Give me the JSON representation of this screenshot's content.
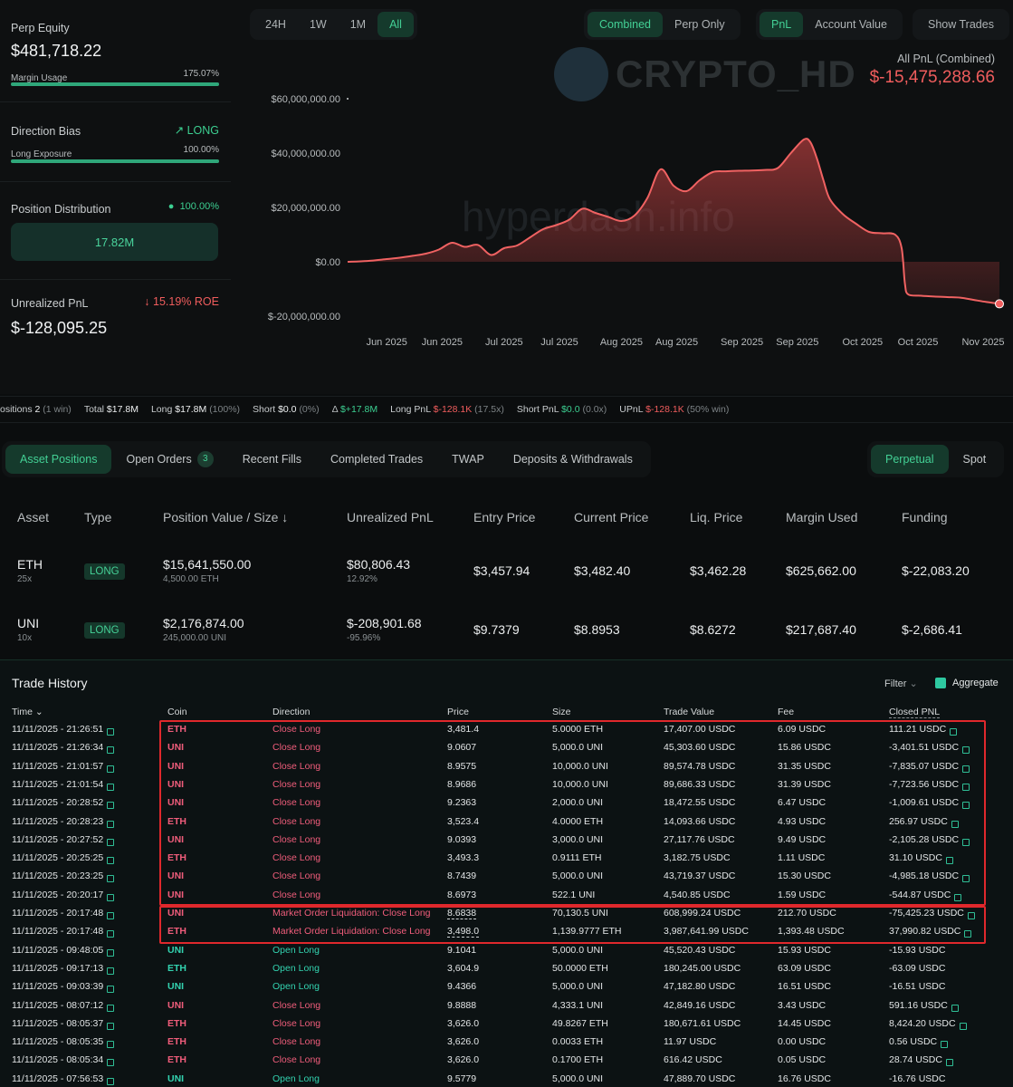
{
  "left_panel": {
    "perp_equity": {
      "label": "Perp Equity",
      "value": "$481,718.22",
      "sub_label": "Margin Usage",
      "sub_value": "175.07%",
      "bar_fraction": 1.0
    },
    "direction_bias": {
      "label": "Direction Bias",
      "value": "LONG",
      "sub_label": "Long Exposure",
      "sub_value": "100.00%",
      "bar_fraction": 1.0
    },
    "position_distribution": {
      "label": "Position Distribution",
      "value": "100.00%",
      "box_value": "17.82M"
    },
    "unrealized_pnl": {
      "label": "Unrealized PnL",
      "roe": "15.19% ROE",
      "value": "$-128,095.25"
    }
  },
  "toolbar": {
    "ranges": [
      "24H",
      "1W",
      "1M",
      "All"
    ],
    "range_active": "All",
    "modes": [
      "Combined",
      "Perp Only"
    ],
    "mode_active": "Combined",
    "metrics": [
      "PnL",
      "Account Value"
    ],
    "metric_active": "PnL",
    "show_trades": "Show Trades"
  },
  "watermark": {
    "text": "CRYPTO_HD",
    "site": "hyperdash.info"
  },
  "pnl_summary": {
    "label": "All PnL (Combined)",
    "value": "$-15,475,288.66"
  },
  "chart_data": {
    "type": "area",
    "title": "",
    "xlabel": "",
    "ylabel": "",
    "ylim": [
      -20000000,
      60000000
    ],
    "y_ticks": [
      "$60,000,000.00",
      "$40,000,000.00",
      "$20,000,000.00",
      "$0.00",
      "$-20,000,000.00"
    ],
    "y_tick_values": [
      60000000,
      40000000,
      20000000,
      0,
      -20000000
    ],
    "x_ticks": [
      "Jun 2025",
      "Jun 2025",
      "Jul 2025",
      "Jul 2025",
      "Aug 2025",
      "Aug 2025",
      "Sep 2025",
      "Sep 2025",
      "Oct 2025",
      "Oct 2025",
      "Nov 2025"
    ],
    "x_range": [
      0,
      100
    ],
    "x_tick_positions": [
      6,
      14.5,
      24,
      32.5,
      42,
      50.5,
      60.5,
      69,
      79,
      87.5,
      97.5
    ],
    "x": [
      0,
      3,
      6,
      8,
      10,
      12,
      14,
      16,
      18,
      20,
      22,
      24,
      26,
      28,
      30,
      32,
      34,
      36,
      38,
      40,
      42,
      44,
      46,
      48,
      50,
      52,
      54,
      56,
      58,
      60,
      62,
      64,
      66,
      68,
      70,
      71,
      72,
      73,
      74,
      76,
      78,
      80,
      82,
      84,
      85,
      85.5,
      86,
      88,
      90,
      92,
      94,
      96,
      98,
      100
    ],
    "y": [
      0,
      300000,
      1000000,
      1500000,
      2200000,
      3000000,
      4500000,
      7000000,
      5500000,
      6200000,
      2500000,
      5000000,
      6000000,
      9000000,
      12000000,
      13500000,
      15500000,
      19500000,
      18000000,
      16500000,
      15000000,
      17000000,
      23500000,
      34000000,
      28000000,
      26000000,
      30000000,
      33000000,
      33300000,
      33500000,
      33600000,
      33800000,
      34500000,
      40000000,
      45000000,
      44000000,
      38000000,
      30000000,
      23000000,
      17500000,
      14000000,
      11000000,
      10500000,
      10000000,
      5000000,
      -8000000,
      -12000000,
      -12500000,
      -12800000,
      -13000000,
      -13200000,
      -14000000,
      -14800000,
      -15475288
    ]
  },
  "stats": [
    {
      "label": "ositions",
      "value": "2",
      "extra": "(1 win)"
    },
    {
      "label": "Total",
      "value": "$17.8M",
      "extra": ""
    },
    {
      "label": "Long",
      "value": "$17.8M",
      "extra": "(100%)"
    },
    {
      "label": "Short",
      "value": "$0.0",
      "extra": "(0%)"
    },
    {
      "label": "Δ",
      "value": "$+17.8M",
      "extra": ""
    },
    {
      "label": "Long PnL",
      "value": "$-128.1K",
      "extra": "(17.5x)"
    },
    {
      "label": "Short PnL",
      "value": "$0.0",
      "extra": "(0.0x)"
    },
    {
      "label": "UPnL",
      "value": "$-128.1K",
      "extra": "(50% win)"
    }
  ],
  "tabs": [
    {
      "label": "Asset Positions",
      "badge": ""
    },
    {
      "label": "Open Orders",
      "badge": "3"
    },
    {
      "label": "Recent Fills",
      "badge": ""
    },
    {
      "label": "Completed Trades",
      "badge": ""
    },
    {
      "label": "TWAP",
      "badge": ""
    },
    {
      "label": "Deposits & Withdrawals",
      "badge": ""
    }
  ],
  "market_tabs": [
    "Perpetual",
    "Spot"
  ],
  "positions": {
    "headers": [
      "Asset",
      "Type",
      "Position Value / Size",
      "Unrealized PnL",
      "Entry Price",
      "Current Price",
      "Liq. Price",
      "Margin Used",
      "Funding"
    ],
    "rows": [
      {
        "asset": "ETH",
        "leverage": "25x",
        "type": "LONG",
        "value": "$15,641,550.00",
        "size": "4,500.00 ETH",
        "upnl": "$80,806.43",
        "upnl_pct": "12.92%",
        "entry": "$3,457.94",
        "current": "$3,482.40",
        "liq": "$3,462.28",
        "margin": "$625,662.00",
        "funding": "$-22,083.20"
      },
      {
        "asset": "UNI",
        "leverage": "10x",
        "type": "LONG",
        "value": "$2,176,874.00",
        "size": "245,000.00 UNI",
        "upnl": "$-208,901.68",
        "upnl_pct": "-95.96%",
        "entry": "$9.7379",
        "current": "$8.8953",
        "liq": "$8.6272",
        "margin": "$217,687.40",
        "funding": "$-2,686.41"
      }
    ]
  },
  "history": {
    "title": "Trade History",
    "filter": "Filter",
    "aggregate": "Aggregate",
    "headers": [
      "Time",
      "Coin",
      "Direction",
      "Price",
      "Size",
      "Trade Value",
      "Fee",
      "Closed PNL"
    ],
    "rows": [
      {
        "time": "11/11/2025 - 21:26:51",
        "coin": "ETH",
        "dir": "Close Long",
        "price": "3,481.4",
        "size": "5.0000 ETH",
        "value": "17,407.00 USDC",
        "fee": "6.09 USDC",
        "pnl": "111.21 USDC",
        "open": false
      },
      {
        "time": "11/11/2025 - 21:26:34",
        "coin": "UNI",
        "dir": "Close Long",
        "price": "9.0607",
        "size": "5,000.0 UNI",
        "value": "45,303.60 USDC",
        "fee": "15.86 USDC",
        "pnl": "-3,401.51 USDC",
        "open": false
      },
      {
        "time": "11/11/2025 - 21:01:57",
        "coin": "UNI",
        "dir": "Close Long",
        "price": "8.9575",
        "size": "10,000.0 UNI",
        "value": "89,574.78 USDC",
        "fee": "31.35 USDC",
        "pnl": "-7,835.07 USDC",
        "open": false
      },
      {
        "time": "11/11/2025 - 21:01:54",
        "coin": "UNI",
        "dir": "Close Long",
        "price": "8.9686",
        "size": "10,000.0 UNI",
        "value": "89,686.33 USDC",
        "fee": "31.39 USDC",
        "pnl": "-7,723.56 USDC",
        "open": false
      },
      {
        "time": "11/11/2025 - 20:28:52",
        "coin": "UNI",
        "dir": "Close Long",
        "price": "9.2363",
        "size": "2,000.0 UNI",
        "value": "18,472.55 USDC",
        "fee": "6.47 USDC",
        "pnl": "-1,009.61 USDC",
        "open": false
      },
      {
        "time": "11/11/2025 - 20:28:23",
        "coin": "ETH",
        "dir": "Close Long",
        "price": "3,523.4",
        "size": "4.0000 ETH",
        "value": "14,093.66 USDC",
        "fee": "4.93 USDC",
        "pnl": "256.97 USDC",
        "open": false
      },
      {
        "time": "11/11/2025 - 20:27:52",
        "coin": "UNI",
        "dir": "Close Long",
        "price": "9.0393",
        "size": "3,000.0 UNI",
        "value": "27,117.76 USDC",
        "fee": "9.49 USDC",
        "pnl": "-2,105.28 USDC",
        "open": false
      },
      {
        "time": "11/11/2025 - 20:25:25",
        "coin": "ETH",
        "dir": "Close Long",
        "price": "3,493.3",
        "size": "0.9111 ETH",
        "value": "3,182.75 USDC",
        "fee": "1.11 USDC",
        "pnl": "31.10 USDC",
        "open": false
      },
      {
        "time": "11/11/2025 - 20:23:25",
        "coin": "UNI",
        "dir": "Close Long",
        "price": "8.7439",
        "size": "5,000.0 UNI",
        "value": "43,719.37 USDC",
        "fee": "15.30 USDC",
        "pnl": "-4,985.18 USDC",
        "open": false
      },
      {
        "time": "11/11/2025 - 20:20:17",
        "coin": "UNI",
        "dir": "Close Long",
        "price": "8.6973",
        "size": "522.1 UNI",
        "value": "4,540.85 USDC",
        "fee": "1.59 USDC",
        "pnl": "-544.87 USDC",
        "open": false
      },
      {
        "time": "11/11/2025 - 20:17:48",
        "coin": "UNI",
        "dir": "Market Order Liquidation: Close Long",
        "price": "8.6838",
        "size": "70,130.5 UNI",
        "value": "608,999.24 USDC",
        "fee": "212.70 USDC",
        "pnl": "-75,425.23 USDC",
        "open": false
      },
      {
        "time": "11/11/2025 - 20:17:48",
        "coin": "ETH",
        "dir": "Market Order Liquidation: Close Long",
        "price": "3,498.0",
        "size": "1,139.9777 ETH",
        "value": "3,987,641.99 USDC",
        "fee": "1,393.48 USDC",
        "pnl": "37,990.82 USDC",
        "open": false
      },
      {
        "time": "11/11/2025 - 09:48:05",
        "coin": "UNI",
        "dir": "Open Long",
        "price": "9.1041",
        "size": "5,000.0 UNI",
        "value": "45,520.43 USDC",
        "fee": "15.93 USDC",
        "pnl": "-15.93 USDC",
        "open": true
      },
      {
        "time": "11/11/2025 - 09:17:13",
        "coin": "ETH",
        "dir": "Open Long",
        "price": "3,604.9",
        "size": "50.0000 ETH",
        "value": "180,245.00 USDC",
        "fee": "63.09 USDC",
        "pnl": "-63.09 USDC",
        "open": true
      },
      {
        "time": "11/11/2025 - 09:03:39",
        "coin": "UNI",
        "dir": "Open Long",
        "price": "9.4366",
        "size": "5,000.0 UNI",
        "value": "47,182.80 USDC",
        "fee": "16.51 USDC",
        "pnl": "-16.51 USDC",
        "open": true
      },
      {
        "time": "11/11/2025 - 08:07:12",
        "coin": "UNI",
        "dir": "Close Long",
        "price": "9.8888",
        "size": "4,333.1 UNI",
        "value": "42,849.16 USDC",
        "fee": "3.43 USDC",
        "pnl": "591.16 USDC",
        "open": false
      },
      {
        "time": "11/11/2025 - 08:05:37",
        "coin": "ETH",
        "dir": "Close Long",
        "price": "3,626.0",
        "size": "49.8267 ETH",
        "value": "180,671.61 USDC",
        "fee": "14.45 USDC",
        "pnl": "8,424.20 USDC",
        "open": false
      },
      {
        "time": "11/11/2025 - 08:05:35",
        "coin": "ETH",
        "dir": "Close Long",
        "price": "3,626.0",
        "size": "0.0033 ETH",
        "value": "11.97 USDC",
        "fee": "0.00 USDC",
        "pnl": "0.56 USDC",
        "open": false
      },
      {
        "time": "11/11/2025 - 08:05:34",
        "coin": "ETH",
        "dir": "Close Long",
        "price": "3,626.0",
        "size": "0.1700 ETH",
        "value": "616.42 USDC",
        "fee": "0.05 USDC",
        "pnl": "28.74 USDC",
        "open": false
      },
      {
        "time": "11/11/2025 - 07:56:53",
        "coin": "UNI",
        "dir": "Open Long",
        "price": "9.5779",
        "size": "5,000.0 UNI",
        "value": "47,889.70 USDC",
        "fee": "16.76 USDC",
        "pnl": "-16.76 USDC",
        "open": true
      }
    ]
  }
}
